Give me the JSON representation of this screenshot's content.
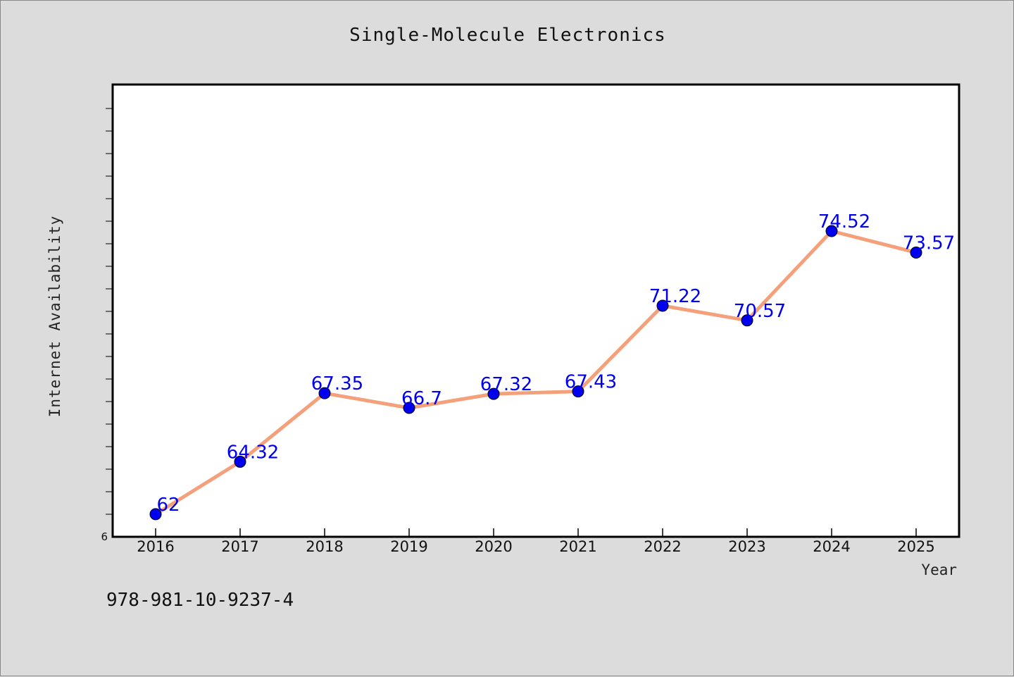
{
  "chart_data": {
    "type": "line",
    "title": "Single-Molecule Electronics",
    "xlabel": "Year",
    "ylabel": "Internet Availability",
    "categories": [
      "2016",
      "2017",
      "2018",
      "2019",
      "2020",
      "2021",
      "2022",
      "2023",
      "2024",
      "2025"
    ],
    "series": [
      {
        "values": [
          62,
          64.32,
          67.35,
          66.7,
          67.32,
          67.43,
          71.22,
          70.57,
          74.52,
          73.57
        ],
        "labels": [
          "62",
          "64.32",
          "67.35",
          "66.7",
          "67.32",
          "67.43",
          "71.22",
          "70.57",
          "74.52",
          "73.57"
        ],
        "line_color": "#f4a07a",
        "marker_color": "#0000ee",
        "label_color": "#0000ee"
      }
    ],
    "ylim": [
      61,
      81
    ],
    "y_tick_labels": [
      "6"
    ],
    "grid": false,
    "legend": "none"
  },
  "footer": {
    "code": "978-981-10-9237-4"
  },
  "colors": {
    "background": "#dcdcdc",
    "plot_background": "#ffffff",
    "axis": "#000000"
  }
}
